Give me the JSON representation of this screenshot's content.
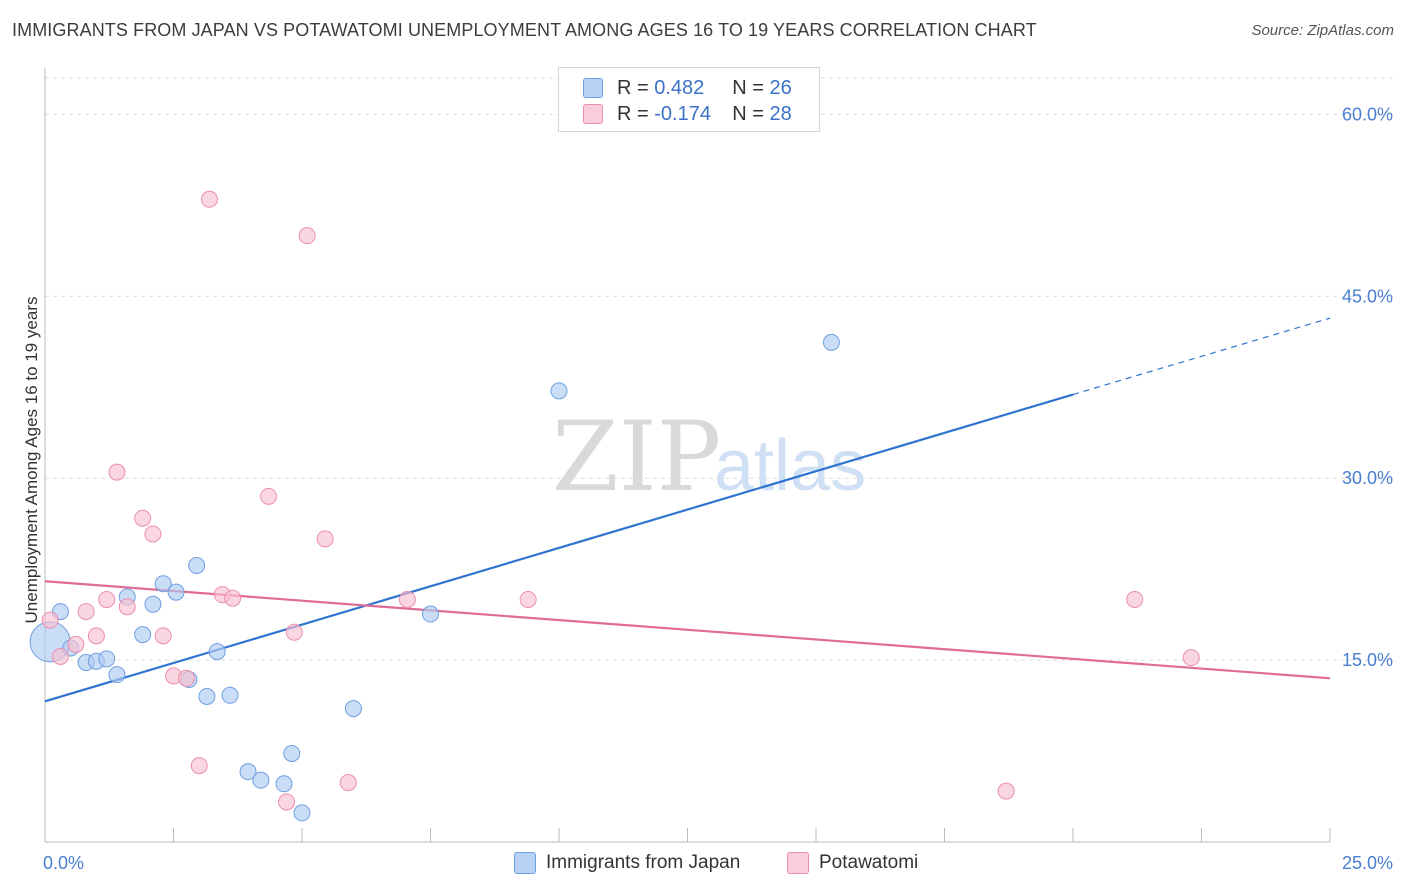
{
  "title": "IMMIGRANTS FROM JAPAN VS POTAWATOMI UNEMPLOYMENT AMONG AGES 16 TO 19 YEARS CORRELATION CHART",
  "source": "Source: ZipAtlas.com",
  "watermark": {
    "zip": "ZIP",
    "atlas": "atlas"
  },
  "legend": {
    "japan": {
      "r_label": "R =",
      "r_value": "0.482",
      "n_label": "N =",
      "n_value": "26"
    },
    "potawatomi": {
      "r_label": "R =",
      "r_value": "-0.174",
      "n_label": "N =",
      "n_value": "28"
    }
  },
  "colors": {
    "japan_fill": "#aecbf2",
    "japan_stroke": "#6f9fe0",
    "japan_line": "#2f74d0",
    "potawatomi_fill": "#f7c0d0",
    "potawatomi_stroke": "#ec8fac",
    "potawatomi_line": "#e06b96",
    "axis_text": "#4a7ed1",
    "grid": "#dddddd"
  },
  "chart_data": {
    "type": "scatter",
    "title": "IMMIGRANTS FROM JAPAN VS POTAWATOMI UNEMPLOYMENT AMONG AGES 16 TO 19 YEARS CORRELATION CHART",
    "xlabel": "",
    "ylabel": "Unemployment Among Ages 16 to 19 years",
    "xlim": [
      0,
      25
    ],
    "ylim": [
      0,
      63
    ],
    "x_tick_labels": [
      "0.0%",
      "25.0%"
    ],
    "y_ticks": [
      15,
      30,
      45,
      60
    ],
    "y_tick_labels": [
      "15.0%",
      "30.0%",
      "45.0%",
      "60.0%"
    ],
    "grid": true,
    "legend_position": "top-center",
    "series": [
      {
        "name": "Immigrants from Japan",
        "points": [
          [
            0.1,
            16.5,
            "large"
          ],
          [
            0.3,
            19.0
          ],
          [
            0.5,
            16.0
          ],
          [
            0.8,
            14.8
          ],
          [
            1.0,
            14.9
          ],
          [
            1.2,
            15.1
          ],
          [
            1.4,
            13.8
          ],
          [
            1.6,
            20.2
          ],
          [
            1.9,
            17.1
          ],
          [
            2.1,
            19.6
          ],
          [
            2.3,
            21.3
          ],
          [
            2.55,
            20.6
          ],
          [
            2.8,
            13.4
          ],
          [
            2.95,
            22.8
          ],
          [
            3.15,
            12.0
          ],
          [
            3.35,
            15.7
          ],
          [
            3.6,
            12.1
          ],
          [
            3.95,
            5.8
          ],
          [
            4.2,
            5.1
          ],
          [
            4.65,
            4.8
          ],
          [
            4.8,
            7.3
          ],
          [
            5.0,
            2.4
          ],
          [
            6.0,
            11.0
          ],
          [
            7.5,
            18.8
          ],
          [
            10.0,
            37.2
          ],
          [
            15.3,
            41.2
          ]
        ],
        "trend": {
          "x0": 0,
          "y0": 11.6,
          "x1": 20,
          "y1": 36.9,
          "dashed_to_x": 25,
          "dashed_to_y": 43.2
        }
      },
      {
        "name": "Potawatomi",
        "points": [
          [
            0.1,
            18.3
          ],
          [
            0.3,
            15.3
          ],
          [
            0.6,
            16.3
          ],
          [
            0.8,
            19.0
          ],
          [
            1.0,
            17.0
          ],
          [
            1.2,
            20.0
          ],
          [
            1.4,
            30.5
          ],
          [
            1.6,
            19.4
          ],
          [
            1.9,
            26.7
          ],
          [
            2.1,
            25.4
          ],
          [
            2.3,
            17.0
          ],
          [
            2.5,
            13.7
          ],
          [
            2.75,
            13.5
          ],
          [
            3.0,
            6.3
          ],
          [
            3.2,
            53.0
          ],
          [
            3.45,
            20.4
          ],
          [
            3.65,
            20.1
          ],
          [
            4.35,
            28.5
          ],
          [
            4.7,
            3.3
          ],
          [
            4.85,
            17.3
          ],
          [
            5.1,
            50.0
          ],
          [
            5.45,
            25.0
          ],
          [
            5.9,
            4.9
          ],
          [
            7.05,
            20.0
          ],
          [
            9.4,
            20.0
          ],
          [
            18.7,
            4.2
          ],
          [
            21.2,
            20.0
          ],
          [
            22.3,
            15.2
          ]
        ],
        "trend": {
          "x0": 0,
          "y0": 21.5,
          "x1": 25,
          "y1": 13.5
        }
      }
    ]
  }
}
